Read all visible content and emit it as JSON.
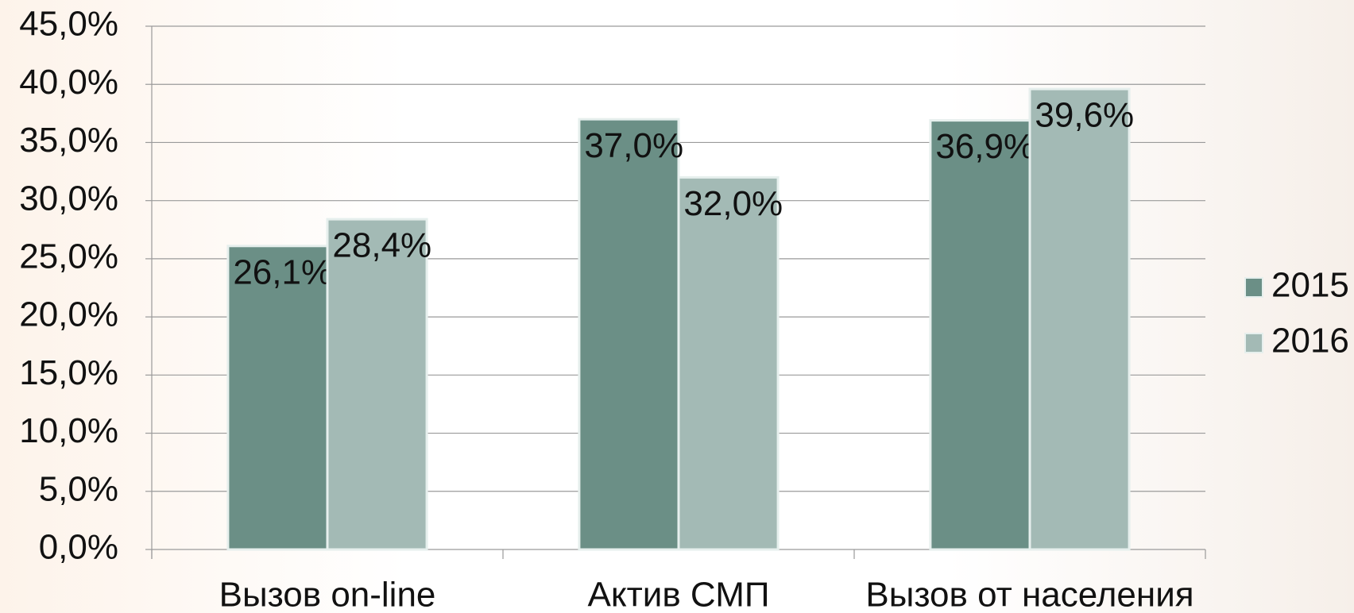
{
  "chart_data": {
    "type": "bar",
    "categories": [
      "Вызов on-line",
      "Актив СМП",
      "Вызов от населения"
    ],
    "series": [
      {
        "name": "2015",
        "color": "#6b8f86",
        "values": [
          26.1,
          37.0,
          36.9
        ],
        "value_labels": [
          "26,1%",
          "37,0%",
          "36,9%"
        ]
      },
      {
        "name": "2016",
        "color": "#a3bab5",
        "values": [
          28.4,
          32.0,
          39.6
        ],
        "value_labels": [
          "28,4%",
          "32,0%",
          "39,6%"
        ]
      }
    ],
    "ylim": [
      0,
      45
    ],
    "yticks": [
      {
        "value": 0,
        "label": "0,0%"
      },
      {
        "value": 5,
        "label": "5,0%"
      },
      {
        "value": 10,
        "label": "10,0%"
      },
      {
        "value": 15,
        "label": "15,0%"
      },
      {
        "value": 20,
        "label": "20,0%"
      },
      {
        "value": 25,
        "label": "25,0%"
      },
      {
        "value": 30,
        "label": "30,0%"
      },
      {
        "value": 35,
        "label": "35,0%"
      },
      {
        "value": 40,
        "label": "40,0%"
      },
      {
        "value": 45,
        "label": "45,0%"
      }
    ],
    "grid": true,
    "legend": "right"
  }
}
